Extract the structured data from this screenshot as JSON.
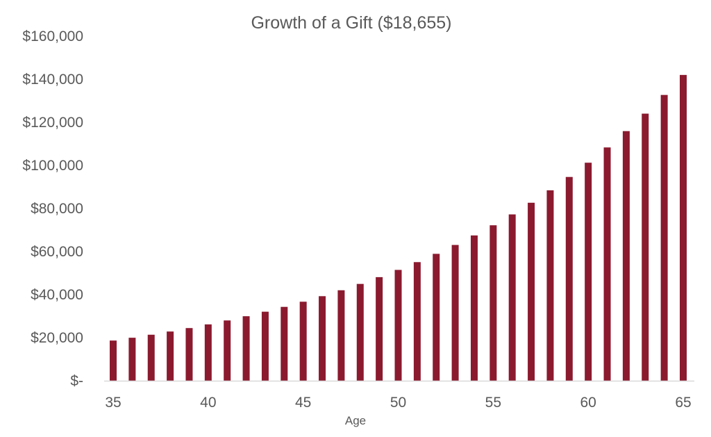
{
  "chart_data": {
    "type": "bar",
    "title": "Growth of a Gift ($18,655)",
    "xlabel": "Age",
    "ylabel": "",
    "x": [
      35,
      36,
      37,
      38,
      39,
      40,
      41,
      42,
      43,
      44,
      45,
      46,
      47,
      48,
      49,
      50,
      51,
      52,
      53,
      54,
      55,
      56,
      57,
      58,
      59,
      60,
      61,
      62,
      63,
      64,
      65
    ],
    "values": [
      18655,
      19960,
      21360,
      22850,
      24450,
      26160,
      27990,
      29950,
      32050,
      34290,
      36690,
      39260,
      42010,
      44950,
      48100,
      51460,
      55070,
      58920,
      63040,
      67460,
      72180,
      77230,
      82640,
      88420,
      94610,
      101230,
      108320,
      115900,
      124010,
      132690,
      141980
    ],
    "x_tick_labels": [
      "35",
      "40",
      "45",
      "50",
      "55",
      "60",
      "65"
    ],
    "y_tick_labels": [
      "$-",
      "$20,000",
      "$40,000",
      "$60,000",
      "$80,000",
      "$100,000",
      "$120,000",
      "$140,000",
      "$160,000"
    ],
    "y_tick_values": [
      0,
      20000,
      40000,
      60000,
      80000,
      100000,
      120000,
      140000,
      160000
    ],
    "ylim": [
      0,
      160000
    ],
    "xlim": [
      35,
      65
    ],
    "grid": false,
    "legend": "none",
    "bar_color": "#8B1A2F",
    "axis_color": "#D9D9D9",
    "text_color": "#595959"
  }
}
